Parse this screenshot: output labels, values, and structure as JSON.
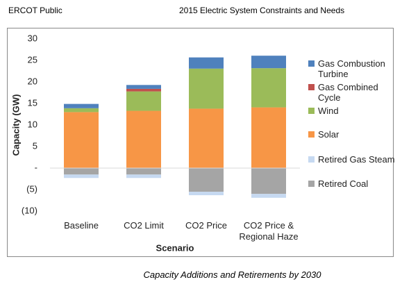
{
  "header": {
    "left": "ERCOT Public",
    "right": "2015 Electric System Constraints and Needs"
  },
  "chart_data": {
    "type": "bar",
    "stacked": true,
    "caption": "Capacity Additions and Retirements by 2030",
    "x_label": "Scenario",
    "y_label": "Capacity (GW)",
    "categories": [
      "Baseline",
      "CO2 Limit",
      "CO2 Price",
      "CO2 Price & Regional Haze"
    ],
    "series": [
      {
        "name": "Gas Combustion Turbine",
        "color": "#4f81bd",
        "values": [
          1,
          0.9,
          2.6,
          2.9
        ]
      },
      {
        "name": "Gas Combined Cycle",
        "color": "#c0504d",
        "values": [
          0,
          0.6,
          0,
          0
        ]
      },
      {
        "name": "Wind",
        "color": "#9bbb59",
        "values": [
          0.9,
          4.5,
          9.3,
          9.1
        ]
      },
      {
        "name": "Solar",
        "color": "#f79646",
        "values": [
          13,
          13.3,
          13.8,
          14.1
        ]
      },
      {
        "name": "Retired Gas Steam",
        "color": "#c6d9f1",
        "values": [
          -0.8,
          -0.8,
          -0.8,
          -0.9
        ]
      },
      {
        "name": "Retired Coal",
        "color": "#a5a5a5",
        "values": [
          -1.5,
          -1.5,
          -5.5,
          -6
        ]
      }
    ],
    "ylim": [
      -10,
      30
    ],
    "yticks": [
      {
        "value": -10,
        "label": "(10)"
      },
      {
        "value": -5,
        "label": "(5)"
      },
      {
        "value": 0,
        "label": "-"
      },
      5,
      10,
      15,
      20,
      25,
      30
    ],
    "legend": "right"
  }
}
